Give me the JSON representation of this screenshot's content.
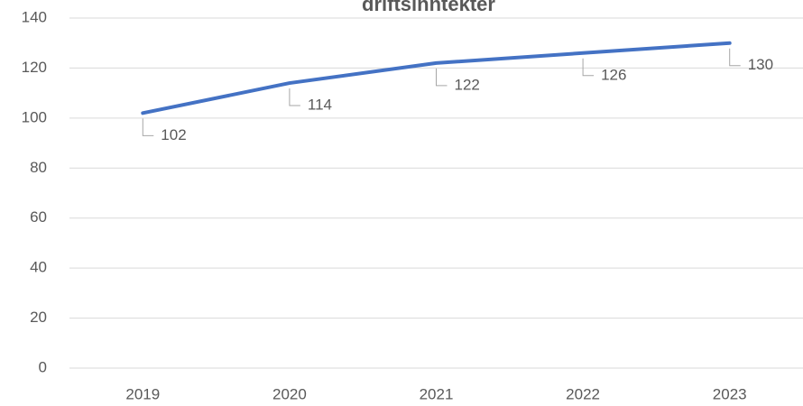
{
  "chart_data": {
    "type": "line",
    "title": "driftsinntekter",
    "categories": [
      "2019",
      "2020",
      "2021",
      "2022",
      "2023"
    ],
    "values": [
      102,
      114,
      122,
      126,
      130
    ],
    "color": "#4472c4",
    "ylim": [
      0,
      140
    ],
    "yticks": [
      0,
      20,
      40,
      60,
      80,
      100,
      120,
      140
    ],
    "grid": true
  }
}
